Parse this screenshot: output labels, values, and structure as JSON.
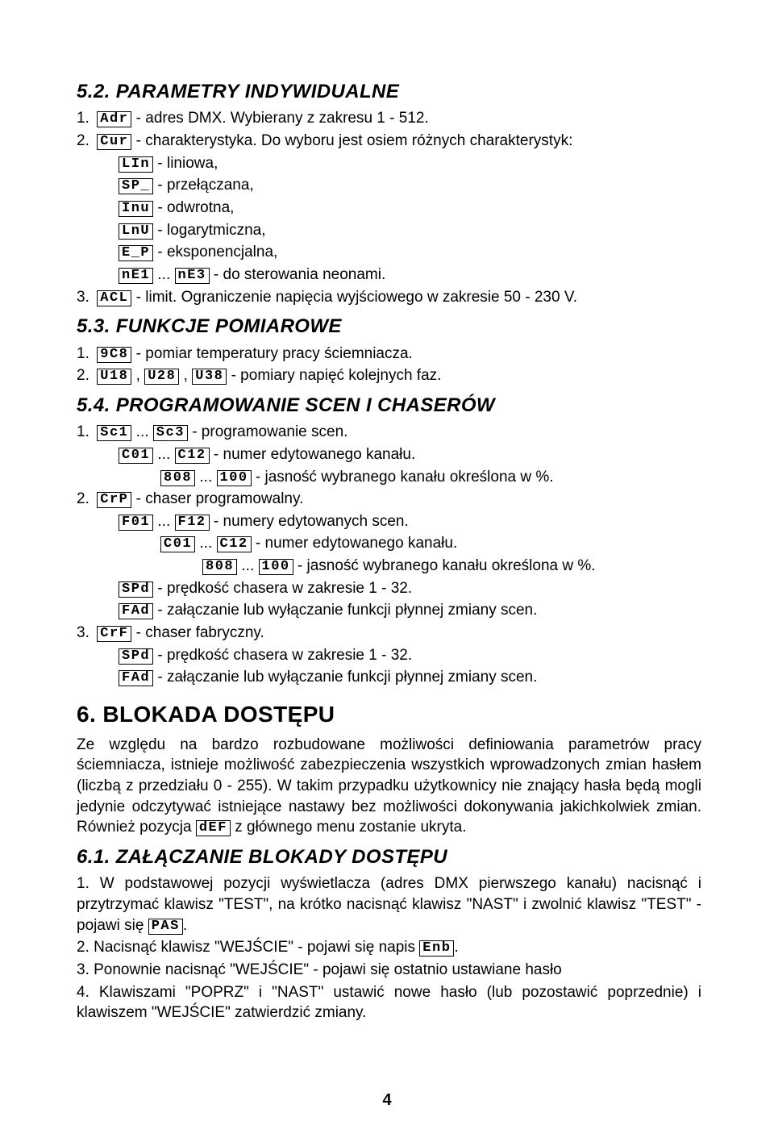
{
  "sec52": {
    "heading": "5.2. PARAMETRY INDYWIDUALNE",
    "l1_num": "1.",
    "l1_seg": "Adr",
    "l1_txt": " - adres DMX. Wybierany z zakresu 1 - 512.",
    "l2_num": "2.",
    "l2_seg": "Cur",
    "l2_txt": " - charakterystyka. Do wyboru jest osiem różnych charakterystyk:",
    "c1_seg": "LIn",
    "c1_txt": " - liniowa,",
    "c2_seg": "SP_",
    "c2_txt": " - przełączana,",
    "c3_seg": "Inu",
    "c3_txt": " - odwrotna,",
    "c4_seg": "LnU",
    "c4_txt": " - logarytmiczna,",
    "c5_seg": "E_P",
    "c5_txt": " - eksponencjalna,",
    "c6a_seg": "nE1",
    "c6_dots": " ... ",
    "c6b_seg": "nE3",
    "c6_txt": " - do sterowania neonami.",
    "l3_num": "3.",
    "l3_seg": "ACL",
    "l3_txt": " - limit. Ograniczenie napięcia wyjściowego w zakresie 50 - 230 V."
  },
  "sec53": {
    "heading": "5.3. FUNKCJE POMIAROWE",
    "l1_num": "1.",
    "l1_seg": "9C8",
    "l1_txt": " - pomiar temperatury pracy ściemniacza.",
    "l2_num": "2.",
    "l2a_seg": "U18",
    "l2_c1": " , ",
    "l2b_seg": "U28",
    "l2_c2": " , ",
    "l2c_seg": "U38",
    "l2_txt": " - pomiary napięć kolejnych faz."
  },
  "sec54": {
    "heading": "5.4. PROGRAMOWANIE SCEN I CHASERÓW",
    "l1_num": "1.",
    "l1a_seg": "Sc1",
    "l1_dots": " ... ",
    "l1b_seg": "Sc3",
    "l1_txt": " - programowanie scen.",
    "l1i_a": "C01",
    "l1i_dots": " ... ",
    "l1i_b": "C12",
    "l1i_txt": " - numer edytowanego kanału.",
    "l1ii_a": "808",
    "l1ii_dots": " ... ",
    "l1ii_b": "100",
    "l1ii_txt": " - jasność wybranego kanału określona w %.",
    "l2_num": "2.",
    "l2_seg": "CrP",
    "l2_txt": " - chaser programowalny.",
    "l2i_a": "F01",
    "l2i_dots": " ... ",
    "l2i_b": "F12",
    "l2i_txt": " - numery edytowanych scen.",
    "l2ii_a": "C01",
    "l2ii_dots": " ... ",
    "l2ii_b": "C12",
    "l2ii_txt": " - numer edytowanego kanału.",
    "l2iii_a": "808",
    "l2iii_dots": " ... ",
    "l2iii_b": "100",
    "l2iii_txt": " - jasność wybranego kanału określona w %.",
    "l2spd_seg": "SPd",
    "l2spd_txt": " - prędkość chasera w zakresie 1 - 32.",
    "l2fad_seg": "FAd",
    "l2fad_txt": " - załączanie lub wyłączanie funkcji płynnej zmiany scen.",
    "l3_num": "3.",
    "l3_seg": "CrF",
    "l3_txt": " - chaser fabryczny.",
    "l3spd_seg": "SPd",
    "l3spd_txt": " - prędkość chasera w zakresie 1 - 32.",
    "l3fad_seg": "FAd",
    "l3fad_txt": " - załączanie lub wyłączanie funkcji płynnej zmiany scen."
  },
  "sec6": {
    "heading": "6. BLOKADA DOSTĘPU",
    "p1a": "Ze względu na bardzo rozbudowane możliwości definiowania parametrów pracy ściemniacza, istnieje możliwość zabezpieczenia wszystkich wprowadzonych zmian hasłem (liczbą z przedziału 0 - 255). W takim przypadku użytkownicy nie znający hasła będą mogli jedynie odczytywać istniejące nastawy bez możliwości dokonywania jakichkolwiek zmian. Również pozycja ",
    "p1_seg": "dEF",
    "p1b": " z głównego menu zostanie ukryta."
  },
  "sec61": {
    "heading": "6.1. ZAŁĄCZANIE BLOKADY DOSTĘPU",
    "l1a": "1. W podstawowej pozycji wyświetlacza (adres DMX pierwszego kanału) nacisnąć i przytrzymać klawisz \"TEST\", na krótko nacisnąć klawisz \"NAST\" i zwolnić klawisz \"TEST\" - pojawi się ",
    "l1_seg": "PAS",
    "l1b": ".",
    "l2a": "2. Nacisnąć klawisz \"WEJŚCIE\" - pojawi się napis ",
    "l2_seg": "Enb",
    "l2b": ".",
    "l3": "3. Ponownie nacisnąć \"WEJŚCIE\" - pojawi się ostatnio ustawiane hasło",
    "l4": "4. Klawiszami \"POPRZ\" i \"NAST\" ustawić nowe hasło (lub pozostawić poprzednie) i klawiszem \"WEJŚCIE\" zatwierdzić zmiany."
  },
  "pagenum": "4"
}
